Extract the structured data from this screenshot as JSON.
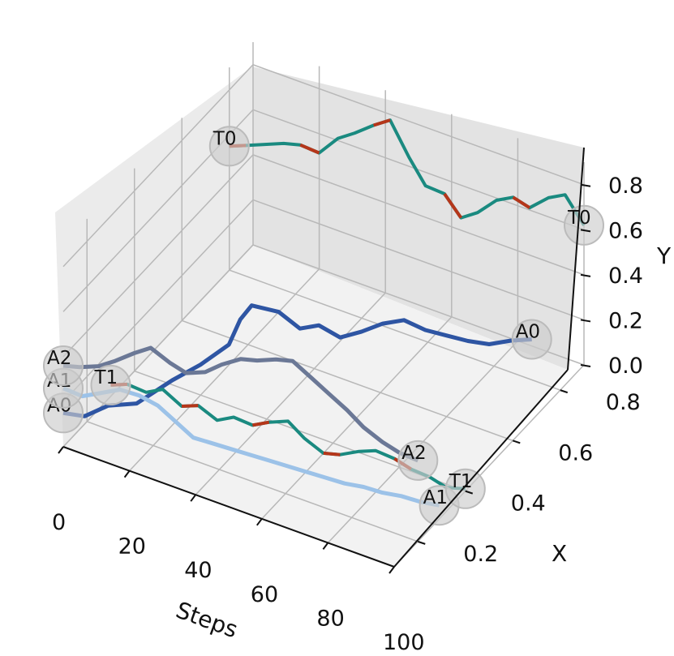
{
  "chart_data": {
    "type": "line",
    "projection": "3d",
    "title": "",
    "xlabel": "Steps",
    "ylabel": "X",
    "zlabel": "Y",
    "xlim": [
      0,
      100
    ],
    "ylim": [
      0.1,
      0.9
    ],
    "zlim": [
      0,
      0.9
    ],
    "x_ticks": [
      0,
      20,
      40,
      60,
      80,
      100
    ],
    "y_ticks": [
      0.2,
      0.4,
      0.6,
      0.8
    ],
    "z_ticks": [
      0.0,
      0.2,
      0.4,
      0.6,
      0.8
    ],
    "x_tick_labels": [
      "0",
      "20",
      "40",
      "60",
      "80",
      "100"
    ],
    "y_tick_labels": [
      "0.2",
      "0.4",
      "0.6",
      "0.8"
    ],
    "z_tick_labels": [
      "0.0",
      "0.2",
      "0.4",
      "0.6",
      "0.8"
    ],
    "grid": true,
    "legend": "none",
    "colors": {
      "A0": "#2e55a3",
      "A1": "#9cc2e8",
      "A2": "#6b7896",
      "target_track": "#1a8a80",
      "target_highlight": "#b5361a",
      "marker_fill": "#cccccc"
    },
    "series": [
      {
        "id": "A0",
        "x": [
          0,
          5,
          10,
          15,
          20,
          25,
          30,
          32,
          34,
          40,
          45,
          50,
          55,
          60,
          65,
          70,
          75,
          80,
          85,
          90,
          95,
          100
        ],
        "y": [
          0.1,
          0.12,
          0.15,
          0.2,
          0.28,
          0.33,
          0.38,
          0.4,
          0.42,
          0.45,
          0.47,
          0.48,
          0.5,
          0.52,
          0.54,
          0.56,
          0.58,
          0.6,
          0.62,
          0.64,
          0.66,
          0.68
        ],
        "z": [
          0.15,
          0.14,
          0.18,
          0.16,
          0.2,
          0.24,
          0.3,
          0.4,
          0.45,
          0.42,
          0.35,
          0.38,
          0.33,
          0.36,
          0.4,
          0.42,
          0.38,
          0.36,
          0.34,
          0.33,
          0.35,
          0.36
        ]
      },
      {
        "id": "A1",
        "x": [
          0,
          5,
          10,
          15,
          20,
          25,
          30,
          35,
          40,
          45,
          50,
          55,
          60,
          65,
          70,
          75,
          80,
          85,
          90,
          95,
          100
        ],
        "y": [
          0.1,
          0.11,
          0.12,
          0.13,
          0.14,
          0.15,
          0.16,
          0.16,
          0.17,
          0.18,
          0.19,
          0.2,
          0.21,
          0.22,
          0.23,
          0.24,
          0.25,
          0.26,
          0.27,
          0.28,
          0.29
        ],
        "z": [
          0.26,
          0.24,
          0.27,
          0.3,
          0.29,
          0.26,
          0.2,
          0.16,
          0.15,
          0.14,
          0.13,
          0.12,
          0.11,
          0.1,
          0.09,
          0.08,
          0.08,
          0.07,
          0.07,
          0.06,
          0.06
        ]
      },
      {
        "id": "A2",
        "x": [
          0,
          5,
          10,
          15,
          20,
          25,
          30,
          35,
          40,
          45,
          50,
          55,
          60,
          65,
          70,
          75,
          80,
          85,
          90,
          95,
          100
        ],
        "y": [
          0.1,
          0.1,
          0.11,
          0.11,
          0.12,
          0.12,
          0.13,
          0.13,
          0.14,
          0.14,
          0.15,
          0.15,
          0.16,
          0.16,
          0.17,
          0.17,
          0.18,
          0.18,
          0.19,
          0.19,
          0.2
        ],
        "z": [
          0.36,
          0.38,
          0.4,
          0.45,
          0.5,
          0.55,
          0.5,
          0.48,
          0.5,
          0.56,
          0.6,
          0.62,
          0.64,
          0.66,
          0.6,
          0.56,
          0.5,
          0.45,
          0.4,
          0.38,
          0.36
        ]
      },
      {
        "id": "T0",
        "x": [
          0,
          5,
          10,
          15,
          20,
          25,
          30,
          35,
          40,
          45,
          50,
          55,
          60,
          65,
          70,
          75,
          80,
          85,
          90,
          95,
          100
        ],
        "y": [
          0.8,
          0.8,
          0.81,
          0.82,
          0.82,
          0.83,
          0.84,
          0.84,
          0.85,
          0.85,
          0.86,
          0.86,
          0.87,
          0.87,
          0.87,
          0.88,
          0.88,
          0.88,
          0.89,
          0.89,
          0.9
        ],
        "z": [
          0.55,
          0.58,
          0.6,
          0.62,
          0.64,
          0.62,
          0.7,
          0.75,
          0.8,
          0.85,
          0.7,
          0.6,
          0.58,
          0.5,
          0.55,
          0.62,
          0.66,
          0.64,
          0.7,
          0.74,
          0.62
        ]
      },
      {
        "id": "T1",
        "x": [
          0,
          5,
          10,
          15,
          20,
          25,
          30,
          35,
          40,
          45,
          50,
          55,
          60,
          65,
          70,
          75,
          80,
          85,
          90,
          95,
          100
        ],
        "y": [
          0.3,
          0.3,
          0.31,
          0.31,
          0.32,
          0.32,
          0.33,
          0.33,
          0.34,
          0.34,
          0.35,
          0.35,
          0.36,
          0.36,
          0.37,
          0.37,
          0.38,
          0.38,
          0.39,
          0.39,
          0.4
        ],
        "z": [
          0.05,
          0.08,
          0.06,
          0.1,
          0.04,
          0.07,
          0.02,
          0.06,
          0.04,
          0.08,
          0.1,
          0.05,
          0.0,
          0.02,
          0.05,
          0.08,
          0.06,
          0.04,
          0.02,
          0.0,
          0.01
        ]
      }
    ],
    "markers": [
      {
        "label": "A0",
        "at": "start",
        "series": "A0"
      },
      {
        "label": "A1",
        "at": "start",
        "series": "A1"
      },
      {
        "label": "A2",
        "at": "start",
        "series": "A2"
      },
      {
        "label": "T0",
        "at": "start",
        "series": "T0"
      },
      {
        "label": "T1",
        "at": "start",
        "series": "T1"
      },
      {
        "label": "A0",
        "at": "end",
        "series": "A0"
      },
      {
        "label": "A1",
        "at": "end",
        "series": "A1"
      },
      {
        "label": "A2",
        "at": "end",
        "series": "A2"
      },
      {
        "label": "T0",
        "at": "end",
        "series": "T0"
      },
      {
        "label": "T1",
        "at": "end",
        "series": "T1"
      }
    ]
  }
}
